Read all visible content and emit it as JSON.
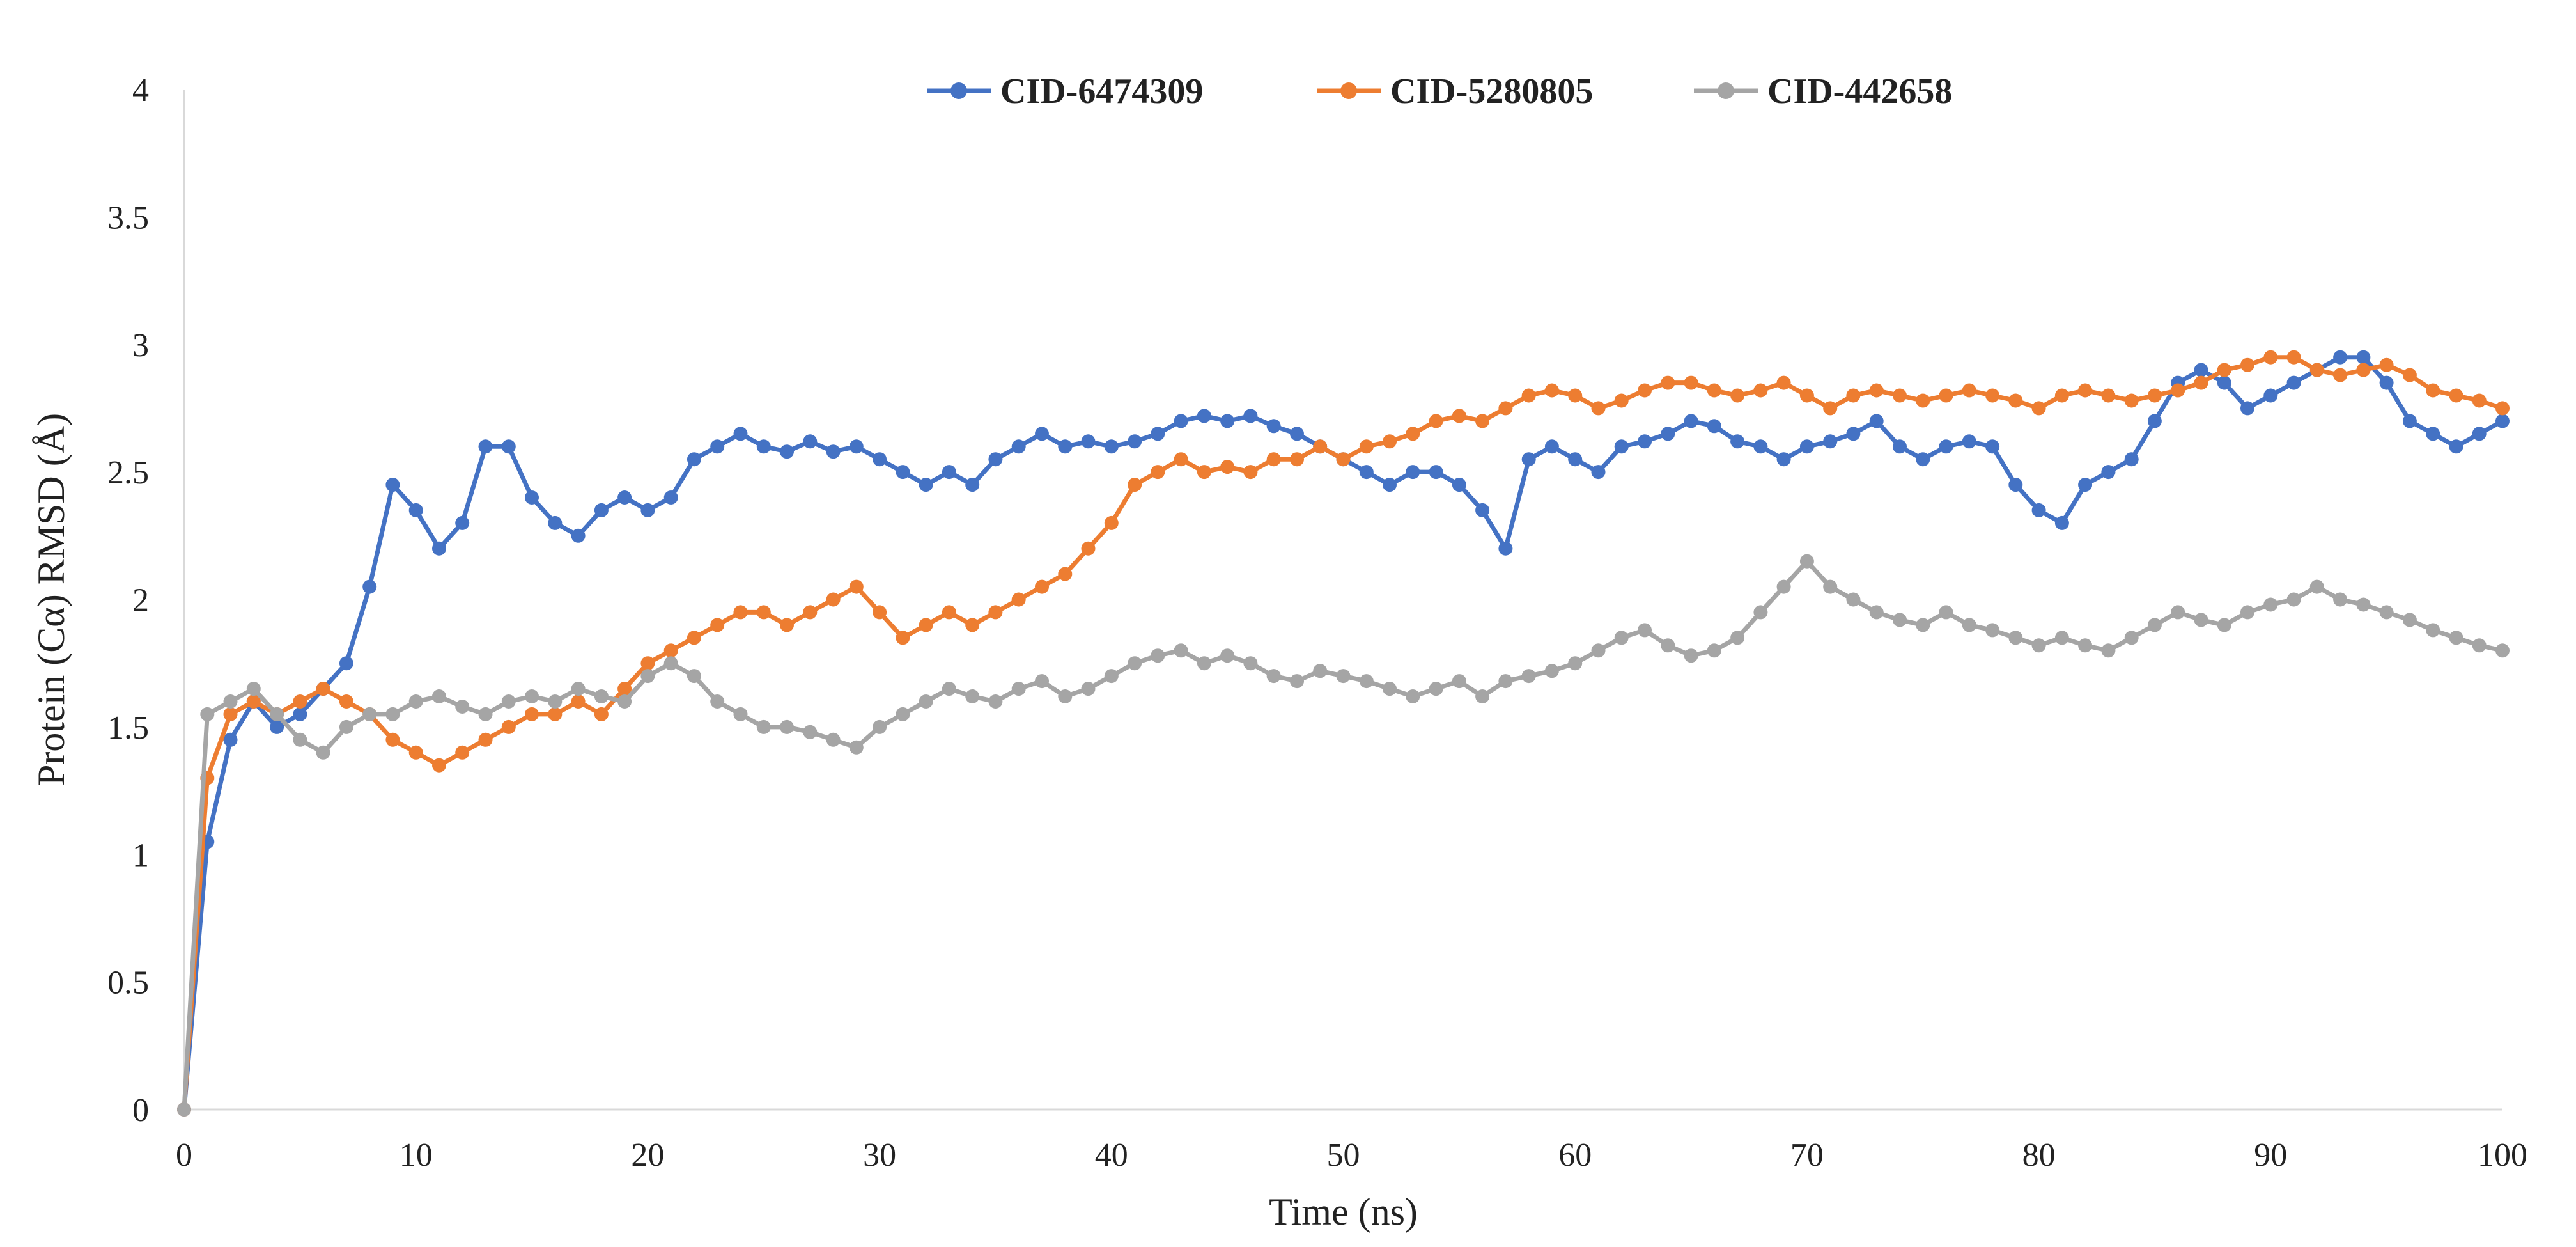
{
  "chart_data": {
    "type": "line",
    "title": "",
    "xlabel": "Time (ns)",
    "ylabel": "Protein (Cα) RMSD (Å)",
    "xlim": [
      0,
      100
    ],
    "ylim": [
      0,
      4
    ],
    "x_ticks": [
      0,
      10,
      20,
      30,
      40,
      50,
      60,
      70,
      80,
      90,
      100
    ],
    "y_ticks": [
      0,
      0.5,
      1,
      1.5,
      2,
      2.5,
      3,
      3.5,
      4
    ],
    "y_tick_labels": [
      "0",
      "0.5",
      "1",
      "1.5",
      "2",
      "2.5",
      "3",
      "3.5",
      "4"
    ],
    "grid": false,
    "legend_position": "top-center",
    "markers": true,
    "sampling_interval_ns": 0.1,
    "series": [
      {
        "name": "CID-6474309",
        "color": "#4472C4",
        "x": [
          0,
          1,
          2,
          3,
          4,
          5,
          6,
          7,
          8,
          9,
          10,
          11,
          12,
          13,
          14,
          15,
          16,
          17,
          18,
          19,
          20,
          21,
          22,
          23,
          24,
          25,
          26,
          27,
          28,
          29,
          30,
          31,
          32,
          33,
          34,
          35,
          36,
          37,
          38,
          39,
          40,
          41,
          42,
          43,
          44,
          45,
          46,
          47,
          48,
          49,
          50,
          51,
          52,
          53,
          54,
          55,
          56,
          57,
          58,
          59,
          60,
          61,
          62,
          63,
          64,
          65,
          66,
          67,
          68,
          69,
          70,
          71,
          72,
          73,
          74,
          75,
          76,
          77,
          78,
          79,
          80,
          81,
          82,
          83,
          84,
          85,
          86,
          87,
          88,
          89,
          90,
          91,
          92,
          93,
          94,
          95,
          96,
          97,
          98,
          99,
          100
        ],
        "values": [
          0,
          1.05,
          1.45,
          1.6,
          1.5,
          1.55,
          1.65,
          1.75,
          2.05,
          2.45,
          2.35,
          2.2,
          2.3,
          2.6,
          2.6,
          2.4,
          2.3,
          2.25,
          2.35,
          2.4,
          2.35,
          2.4,
          2.55,
          2.6,
          2.65,
          2.6,
          2.58,
          2.62,
          2.58,
          2.6,
          2.55,
          2.5,
          2.45,
          2.5,
          2.45,
          2.55,
          2.6,
          2.65,
          2.6,
          2.62,
          2.6,
          2.62,
          2.65,
          2.7,
          2.72,
          2.7,
          2.72,
          2.68,
          2.65,
          2.6,
          2.55,
          2.5,
          2.45,
          2.5,
          2.5,
          2.45,
          2.35,
          2.2,
          2.55,
          2.6,
          2.55,
          2.5,
          2.6,
          2.62,
          2.65,
          2.7,
          2.68,
          2.62,
          2.6,
          2.55,
          2.6,
          2.62,
          2.65,
          2.7,
          2.6,
          2.55,
          2.6,
          2.62,
          2.6,
          2.45,
          2.35,
          2.3,
          2.45,
          2.5,
          2.55,
          2.7,
          2.85,
          2.9,
          2.85,
          2.75,
          2.8,
          2.85,
          2.9,
          2.95,
          2.95,
          2.85,
          2.7,
          2.65,
          2.6,
          2.65,
          2.7
        ]
      },
      {
        "name": "CID-5280805",
        "color": "#ED7D31",
        "x": [
          0,
          1,
          2,
          3,
          4,
          5,
          6,
          7,
          8,
          9,
          10,
          11,
          12,
          13,
          14,
          15,
          16,
          17,
          18,
          19,
          20,
          21,
          22,
          23,
          24,
          25,
          26,
          27,
          28,
          29,
          30,
          31,
          32,
          33,
          34,
          35,
          36,
          37,
          38,
          39,
          40,
          41,
          42,
          43,
          44,
          45,
          46,
          47,
          48,
          49,
          50,
          51,
          52,
          53,
          54,
          55,
          56,
          57,
          58,
          59,
          60,
          61,
          62,
          63,
          64,
          65,
          66,
          67,
          68,
          69,
          70,
          71,
          72,
          73,
          74,
          75,
          76,
          77,
          78,
          79,
          80,
          81,
          82,
          83,
          84,
          85,
          86,
          87,
          88,
          89,
          90,
          91,
          92,
          93,
          94,
          95,
          96,
          97,
          98,
          99,
          100
        ],
        "values": [
          0,
          1.3,
          1.55,
          1.6,
          1.55,
          1.6,
          1.65,
          1.6,
          1.55,
          1.45,
          1.4,
          1.35,
          1.4,
          1.45,
          1.5,
          1.55,
          1.55,
          1.6,
          1.55,
          1.65,
          1.75,
          1.8,
          1.85,
          1.9,
          1.95,
          1.95,
          1.9,
          1.95,
          2.0,
          2.05,
          1.95,
          1.85,
          1.9,
          1.95,
          1.9,
          1.95,
          2.0,
          2.05,
          2.1,
          2.2,
          2.3,
          2.45,
          2.5,
          2.55,
          2.5,
          2.52,
          2.5,
          2.55,
          2.55,
          2.6,
          2.55,
          2.6,
          2.62,
          2.65,
          2.7,
          2.72,
          2.7,
          2.75,
          2.8,
          2.82,
          2.8,
          2.75,
          2.78,
          2.82,
          2.85,
          2.85,
          2.82,
          2.8,
          2.82,
          2.85,
          2.8,
          2.75,
          2.8,
          2.82,
          2.8,
          2.78,
          2.8,
          2.82,
          2.8,
          2.78,
          2.75,
          2.8,
          2.82,
          2.8,
          2.78,
          2.8,
          2.82,
          2.85,
          2.9,
          2.92,
          2.95,
          2.95,
          2.9,
          2.88,
          2.9,
          2.92,
          2.88,
          2.82,
          2.8,
          2.78,
          2.75
        ]
      },
      {
        "name": "CID-442658",
        "color": "#A5A5A5",
        "x": [
          0,
          1,
          2,
          3,
          4,
          5,
          6,
          7,
          8,
          9,
          10,
          11,
          12,
          13,
          14,
          15,
          16,
          17,
          18,
          19,
          20,
          21,
          22,
          23,
          24,
          25,
          26,
          27,
          28,
          29,
          30,
          31,
          32,
          33,
          34,
          35,
          36,
          37,
          38,
          39,
          40,
          41,
          42,
          43,
          44,
          45,
          46,
          47,
          48,
          49,
          50,
          51,
          52,
          53,
          54,
          55,
          56,
          57,
          58,
          59,
          60,
          61,
          62,
          63,
          64,
          65,
          66,
          67,
          68,
          69,
          70,
          71,
          72,
          73,
          74,
          75,
          76,
          77,
          78,
          79,
          80,
          81,
          82,
          83,
          84,
          85,
          86,
          87,
          88,
          89,
          90,
          91,
          92,
          93,
          94,
          95,
          96,
          97,
          98,
          99,
          100
        ],
        "values": [
          0,
          1.55,
          1.6,
          1.65,
          1.55,
          1.45,
          1.4,
          1.5,
          1.55,
          1.55,
          1.6,
          1.62,
          1.58,
          1.55,
          1.6,
          1.62,
          1.6,
          1.65,
          1.62,
          1.6,
          1.7,
          1.75,
          1.7,
          1.6,
          1.55,
          1.5,
          1.5,
          1.48,
          1.45,
          1.42,
          1.5,
          1.55,
          1.6,
          1.65,
          1.62,
          1.6,
          1.65,
          1.68,
          1.62,
          1.65,
          1.7,
          1.75,
          1.78,
          1.8,
          1.75,
          1.78,
          1.75,
          1.7,
          1.68,
          1.72,
          1.7,
          1.68,
          1.65,
          1.62,
          1.65,
          1.68,
          1.62,
          1.68,
          1.7,
          1.72,
          1.75,
          1.8,
          1.85,
          1.88,
          1.82,
          1.78,
          1.8,
          1.85,
          1.95,
          2.05,
          2.15,
          2.05,
          2.0,
          1.95,
          1.92,
          1.9,
          1.95,
          1.9,
          1.88,
          1.85,
          1.82,
          1.85,
          1.82,
          1.8,
          1.85,
          1.9,
          1.95,
          1.92,
          1.9,
          1.95,
          1.98,
          2.0,
          2.05,
          2.0,
          1.98,
          1.95,
          1.92,
          1.88,
          1.85,
          1.82,
          1.8
        ]
      }
    ]
  }
}
